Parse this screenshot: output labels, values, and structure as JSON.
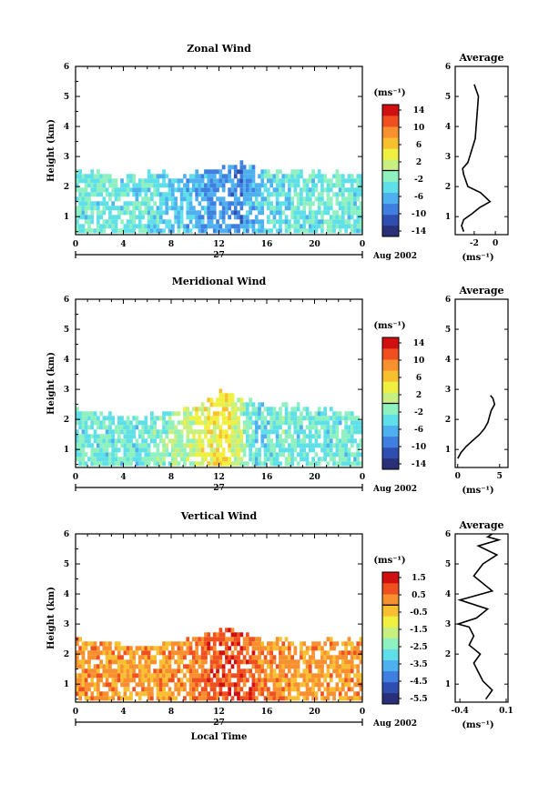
{
  "colors": {
    "colormap": [
      "#2a2f7a",
      "#2f4fb0",
      "#3f7fe0",
      "#4fb0f0",
      "#5fe0e8",
      "#8ff0c0",
      "#c8f080",
      "#f0f040",
      "#f8c030",
      "#f89030",
      "#f05020",
      "#d01010"
    ],
    "frame": "#000000",
    "trace": "#000000"
  },
  "panels": [
    {
      "title": "Zonal Wind",
      "ylabel": "Height (km)",
      "yticks": [
        "1",
        "2",
        "3",
        "4",
        "5",
        "6"
      ],
      "xticks": [
        "0",
        "4",
        "8",
        "12",
        "16",
        "20",
        "0"
      ],
      "date_center": "27",
      "date_right": "Aug 2002",
      "cbar_unit": "(ms⁻¹)",
      "cbar_ticks": [
        "14",
        "10",
        "6",
        "2",
        "-2",
        "-6",
        "-10",
        "-14"
      ],
      "avg_title": "Average",
      "avg_yticks": [
        "1",
        "2",
        "3",
        "4",
        "5",
        "6"
      ],
      "avg_xticks": [
        "-2",
        "0"
      ],
      "avg_xlabel": "(ms⁻¹)"
    },
    {
      "title": "Meridional Wind",
      "ylabel": "Height (km)",
      "yticks": [
        "1",
        "2",
        "3",
        "4",
        "5",
        "6"
      ],
      "xticks": [
        "0",
        "4",
        "8",
        "12",
        "16",
        "20",
        "0"
      ],
      "date_center": "27",
      "date_right": "Aug 2002",
      "cbar_unit": "(ms⁻¹)",
      "cbar_ticks": [
        "14",
        "10",
        "6",
        "2",
        "-2",
        "-6",
        "-10",
        "-14"
      ],
      "avg_title": "Average",
      "avg_yticks": [
        "1",
        "2",
        "3",
        "4",
        "5",
        "6"
      ],
      "avg_xticks": [
        "0",
        "5"
      ],
      "avg_xlabel": "(ms⁻¹)"
    },
    {
      "title": "Vertical Wind",
      "ylabel": "Height (km)",
      "xlabel": "Local Time",
      "yticks": [
        "1",
        "2",
        "3",
        "4",
        "5",
        "6"
      ],
      "xticks": [
        "0",
        "4",
        "8",
        "12",
        "16",
        "20",
        "0"
      ],
      "date_center": "27",
      "date_right": "Aug 2002",
      "cbar_unit": "(ms⁻¹)",
      "cbar_ticks": [
        "1.5",
        "0.5",
        "-0.5",
        "-1.5",
        "-2.5",
        "-3.5",
        "-4.5",
        "-5.5"
      ],
      "avg_title": "Average",
      "avg_yticks": [
        "1",
        "2",
        "3",
        "4",
        "5",
        "6"
      ],
      "avg_xticks": [
        "-0.4",
        "0.1"
      ],
      "avg_xlabel": "(ms⁻¹)"
    }
  ],
  "chart_data": [
    {
      "type": "heatmap",
      "title": "Zonal Wind",
      "xlabel": "",
      "ylabel": "Height (km)",
      "x_range": [
        0,
        24
      ],
      "ylim": [
        0.4,
        6
      ],
      "colorbar_range": [
        -16,
        16
      ],
      "data_top_km": [
        2.4,
        2.4,
        2.3,
        2.2,
        2.3,
        2.3,
        2.4,
        2.4,
        2.3,
        2.3,
        2.4,
        2.5,
        2.6,
        2.7,
        2.6,
        2.5,
        2.5,
        2.4,
        2.4,
        2.4,
        2.4,
        2.4,
        2.4,
        2.4
      ],
      "typical_value_by_hour": [
        -3,
        -3,
        -3,
        -3,
        -3,
        -3,
        -4,
        -5,
        -5,
        -6,
        -7,
        -8,
        -8,
        -9,
        -7,
        -5,
        -4,
        -4,
        -3,
        -3,
        -3,
        -3,
        -3,
        -3
      ],
      "average_profile": {
        "x": [
          -3.0,
          -3.2,
          -3.0,
          -2.2,
          -1.5,
          -0.5,
          -1.4,
          -2.6,
          -2.8,
          -3.0,
          -3.1,
          -2.6,
          -1.9,
          -1.6,
          -2.0
        ],
        "y": [
          0.5,
          0.7,
          0.9,
          1.1,
          1.3,
          1.5,
          1.8,
          2.0,
          2.2,
          2.4,
          2.6,
          2.8,
          3.6,
          5.0,
          5.4
        ]
      }
    },
    {
      "type": "heatmap",
      "title": "Meridional Wind",
      "xlabel": "",
      "ylabel": "Height (km)",
      "x_range": [
        0,
        24
      ],
      "ylim": [
        0.4,
        6
      ],
      "colorbar_range": [
        -16,
        16
      ],
      "data_top_km": [
        2.2,
        2.2,
        2.1,
        2.0,
        2.0,
        2.0,
        2.1,
        2.1,
        2.2,
        2.3,
        2.4,
        2.6,
        2.8,
        2.7,
        2.6,
        2.5,
        2.4,
        2.4,
        2.4,
        2.3,
        2.3,
        2.3,
        2.2,
        2.2
      ],
      "typical_value_by_hour": [
        -3,
        -3,
        -3,
        -3,
        -3,
        -3,
        -2,
        -1,
        0,
        1,
        3,
        4,
        5,
        2,
        -2,
        -4,
        -3,
        -2,
        -3,
        -3,
        -3,
        -3,
        -3,
        -3
      ],
      "average_profile": {
        "x": [
          0.0,
          0.4,
          1.0,
          1.8,
          2.6,
          3.2,
          3.6,
          3.8,
          4.0,
          4.4,
          4.2,
          3.9
        ],
        "y": [
          0.7,
          0.9,
          1.1,
          1.3,
          1.5,
          1.7,
          1.9,
          2.1,
          2.3,
          2.5,
          2.7,
          2.8
        ]
      }
    },
    {
      "type": "heatmap",
      "title": "Vertical Wind",
      "xlabel": "Local Time",
      "ylabel": "Height (km)",
      "x_range": [
        0,
        24
      ],
      "ylim": [
        0.4,
        6
      ],
      "colorbar_range": [
        -6,
        2
      ],
      "data_top_km": [
        2.4,
        2.4,
        2.3,
        2.3,
        2.2,
        2.2,
        2.2,
        2.3,
        2.3,
        2.4,
        2.5,
        2.6,
        2.8,
        2.7,
        2.6,
        2.5,
        2.4,
        2.4,
        2.4,
        2.4,
        2.4,
        2.4,
        2.4,
        2.4
      ],
      "typical_value_by_hour": [
        0.2,
        0.2,
        0.2,
        0.2,
        0.2,
        0.2,
        0.2,
        0.2,
        0.3,
        0.5,
        0.6,
        0.8,
        1.0,
        1.2,
        0.8,
        0.5,
        0.3,
        0.2,
        0.2,
        0.2,
        0.2,
        0.2,
        0.2,
        0.2
      ],
      "average_profile": {
        "x": [
          -0.12,
          -0.05,
          -0.15,
          -0.2,
          -0.25,
          -0.18,
          -0.3,
          -0.25,
          -0.3,
          -0.42,
          -0.22,
          -0.1,
          -0.4,
          -0.05,
          -0.25,
          -0.15,
          0.0,
          -0.2,
          0.02,
          -0.1,
          -0.05
        ],
        "y": [
          0.5,
          0.8,
          1.1,
          1.4,
          1.7,
          2.0,
          2.3,
          2.6,
          2.9,
          3.0,
          3.2,
          3.5,
          3.8,
          4.1,
          4.6,
          5.0,
          5.3,
          5.6,
          5.8,
          5.9,
          6.0
        ]
      }
    }
  ]
}
